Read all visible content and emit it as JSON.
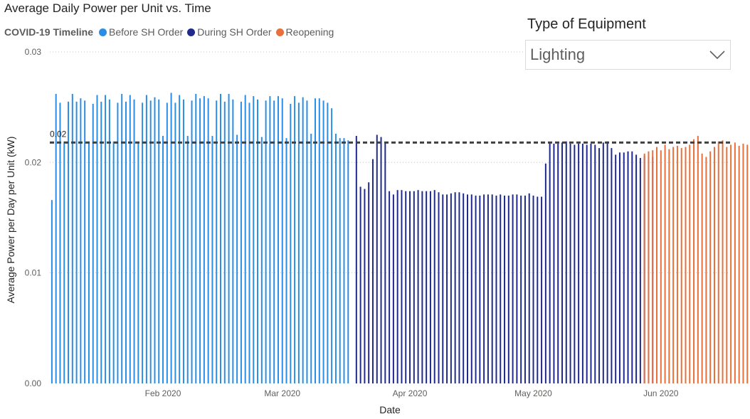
{
  "title": "Average Daily Power per Unit vs. Time",
  "legend": {
    "title": "COVID-19 Timeline",
    "items": [
      {
        "label": "Before SH Order",
        "color": "#2b8de3"
      },
      {
        "label": "During SH Order",
        "color": "#1f2a8c"
      },
      {
        "label": "Reopening",
        "color": "#e8703a"
      }
    ]
  },
  "slicer": {
    "title": "Type of Equipment",
    "value": "Lighting"
  },
  "chart_data": {
    "type": "bar",
    "xlabel": "Date",
    "ylabel": "Average Power per Day per Unit (kW)",
    "ylim": [
      0,
      0.03
    ],
    "y_ticks": [
      {
        "value": 0.0,
        "label": "0.00"
      },
      {
        "value": 0.01,
        "label": "0.01"
      },
      {
        "value": 0.02,
        "label": "0.02"
      },
      {
        "value": 0.03,
        "label": "0.03"
      }
    ],
    "x_ticks": [
      {
        "date": "2020-02-01",
        "label": "Feb 2020"
      },
      {
        "date": "2020-03-01",
        "label": "Mar 2020"
      },
      {
        "date": "2020-04-01",
        "label": "Apr 2020"
      },
      {
        "date": "2020-05-01",
        "label": "May 2020"
      },
      {
        "date": "2020-06-01",
        "label": "Jun 2020"
      }
    ],
    "xlim": [
      "2020-01-05",
      "2020-06-18"
    ],
    "reference_line": {
      "value": 0.0218,
      "label": "0.02"
    },
    "series": [
      {
        "name": "Before SH Order",
        "start": "2020-01-05",
        "values": [
          0.0166,
          0.0262,
          0.0254,
          0.0219,
          0.0255,
          0.0262,
          0.0255,
          0.0258,
          0.0256,
          0.0219,
          0.0253,
          0.0261,
          0.0255,
          0.0261,
          0.0257,
          0.0219,
          0.0254,
          0.0262,
          0.0255,
          0.0261,
          0.0257,
          0.0219,
          0.0254,
          0.0261,
          0.0256,
          0.0259,
          0.0257,
          0.0224,
          0.0254,
          0.0263,
          0.0254,
          0.0261,
          0.0257,
          0.0224,
          0.0256,
          0.0262,
          0.0258,
          0.026,
          0.0258,
          0.0224,
          0.0256,
          0.0262,
          0.0255,
          0.0262,
          0.0257,
          0.0225,
          0.0255,
          0.0261,
          0.0254,
          0.026,
          0.0257,
          0.0223,
          0.0256,
          0.026,
          0.0256,
          0.026,
          0.0258,
          0.0222,
          0.0253,
          0.026,
          0.0254,
          0.0259,
          0.0256,
          0.0226,
          0.0258,
          0.0258,
          0.0256,
          0.0254,
          0.0249,
          0.0226,
          0.0222,
          0.0222,
          0.022
        ]
      },
      {
        "name": "During SH Order",
        "start": "2020-03-19",
        "values": [
          0.0224,
          0.0178,
          0.0176,
          0.0182,
          0.0203,
          0.0225,
          0.0223,
          0.0218,
          0.0174,
          0.0171,
          0.0175,
          0.0175,
          0.0174,
          0.0174,
          0.0174,
          0.0175,
          0.0174,
          0.0174,
          0.0174,
          0.0175,
          0.0173,
          0.0171,
          0.0171,
          0.0172,
          0.0173,
          0.0173,
          0.0172,
          0.0171,
          0.0171,
          0.017,
          0.017,
          0.0171,
          0.0171,
          0.0171,
          0.017,
          0.0171,
          0.017,
          0.017,
          0.0171,
          0.0171,
          0.017,
          0.017,
          0.0172,
          0.017,
          0.0169,
          0.0169,
          0.0199,
          0.0218,
          0.0217,
          0.0217,
          0.0218,
          0.0219,
          0.0217,
          0.0216,
          0.0217,
          0.0217,
          0.0216,
          0.0217,
          0.0216,
          0.0213,
          0.0218,
          0.0219,
          0.0213,
          0.0207,
          0.0209,
          0.0209,
          0.021,
          0.021,
          0.0207,
          0.0204,
          0.0206,
          0.0205,
          0.0205
        ]
      },
      {
        "name": "Reopening",
        "start": "2020-05-28",
        "values": [
          0.0208,
          0.021,
          0.0211,
          0.0214,
          0.0211,
          0.0216,
          0.0212,
          0.0214,
          0.0215,
          0.0213,
          0.0214,
          0.0216,
          0.0221,
          0.0224,
          0.0208,
          0.0205,
          0.021,
          0.0214,
          0.0219,
          0.022,
          0.0214,
          0.0216,
          0.0218,
          0.0215,
          0.0217,
          0.0216,
          0.0211,
          0.021,
          0.0216,
          0.0218,
          0.0213
        ]
      }
    ]
  }
}
